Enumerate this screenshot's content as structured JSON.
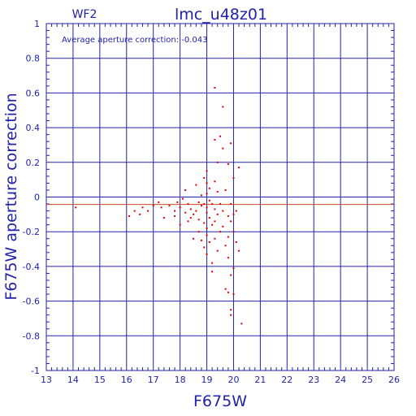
{
  "chart_data": {
    "type": "scatter",
    "panel_label": "WF2",
    "title": "lmc_u48z01",
    "annotation": "Average aperture correction: -0.043",
    "xlabel": "F675W",
    "ylabel": "F675W aperture correction",
    "xlim": [
      13,
      26
    ],
    "ylim": [
      -1,
      1
    ],
    "x_ticks": [
      "13",
      "14",
      "15",
      "16",
      "17",
      "18",
      "19",
      "20",
      "21",
      "22",
      "23",
      "24",
      "25",
      "26"
    ],
    "y_ticks": [
      "1",
      "0.8",
      "0.6",
      "0.4",
      "0.2",
      "0",
      "-0.2",
      "-0.4",
      "-0.6",
      "-0.8",
      "-1"
    ],
    "grid": true,
    "average_line": -0.043,
    "colors": {
      "axes": "#2222aa",
      "points": "#dd0000",
      "average_line": "#cc4422",
      "zero_line": "#2222aa"
    },
    "points": [
      [
        14.1,
        -0.06
      ],
      [
        16.1,
        -0.11
      ],
      [
        16.3,
        -0.08
      ],
      [
        16.5,
        -0.1
      ],
      [
        16.6,
        -0.06
      ],
      [
        16.8,
        -0.08
      ],
      [
        17.0,
        -0.05
      ],
      [
        17.2,
        -0.03
      ],
      [
        17.3,
        -0.06
      ],
      [
        17.4,
        -0.12
      ],
      [
        17.6,
        -0.05
      ],
      [
        17.8,
        -0.08
      ],
      [
        17.8,
        -0.11
      ],
      [
        17.9,
        -0.03
      ],
      [
        18.0,
        -0.06
      ],
      [
        18.0,
        -0.16
      ],
      [
        18.1,
        -0.01
      ],
      [
        18.2,
        0.04
      ],
      [
        18.2,
        -0.09
      ],
      [
        18.3,
        -0.14
      ],
      [
        18.3,
        -0.04
      ],
      [
        18.4,
        -0.07
      ],
      [
        18.4,
        -0.12
      ],
      [
        18.5,
        -0.24
      ],
      [
        18.5,
        -0.1
      ],
      [
        18.6,
        0.07
      ],
      [
        18.6,
        -0.08
      ],
      [
        18.7,
        -0.03
      ],
      [
        18.7,
        -0.13
      ],
      [
        18.7,
        -0.2
      ],
      [
        18.8,
        0.01
      ],
      [
        18.8,
        -0.05
      ],
      [
        18.8,
        -0.25
      ],
      [
        18.9,
        0.11
      ],
      [
        18.9,
        -0.04
      ],
      [
        18.9,
        -0.15
      ],
      [
        18.9,
        -0.29
      ],
      [
        19.0,
        0.15
      ],
      [
        19.0,
        0.08
      ],
      [
        19.0,
        0.02
      ],
      [
        19.0,
        -0.06
      ],
      [
        19.0,
        -0.09
      ],
      [
        19.0,
        -0.18
      ],
      [
        19.0,
        -0.22
      ],
      [
        19.0,
        -0.33
      ],
      [
        19.1,
        0.05
      ],
      [
        19.1,
        -0.02
      ],
      [
        19.1,
        -0.12
      ],
      [
        19.1,
        -0.26
      ],
      [
        19.2,
        -0.04
      ],
      [
        19.2,
        -0.16
      ],
      [
        19.2,
        -0.38
      ],
      [
        19.2,
        -0.43
      ],
      [
        19.3,
        0.63
      ],
      [
        19.3,
        0.33
      ],
      [
        19.3,
        0.09
      ],
      [
        19.3,
        -0.07
      ],
      [
        19.3,
        -0.14
      ],
      [
        19.3,
        -0.24
      ],
      [
        19.4,
        0.2
      ],
      [
        19.4,
        0.03
      ],
      [
        19.4,
        -0.1
      ],
      [
        19.4,
        -0.31
      ],
      [
        19.5,
        0.35
      ],
      [
        19.5,
        -0.04
      ],
      [
        19.5,
        -0.2
      ],
      [
        19.6,
        0.52
      ],
      [
        19.6,
        0.28
      ],
      [
        19.6,
        -0.08
      ],
      [
        19.6,
        -0.17
      ],
      [
        19.7,
        -0.53
      ],
      [
        19.7,
        0.04
      ],
      [
        19.7,
        -0.28
      ],
      [
        19.8,
        -0.55
      ],
      [
        19.8,
        0.19
      ],
      [
        19.8,
        -0.11
      ],
      [
        19.8,
        -0.23
      ],
      [
        19.8,
        -0.35
      ],
      [
        19.9,
        0.31
      ],
      [
        19.9,
        -0.04
      ],
      [
        19.9,
        -0.14
      ],
      [
        19.9,
        -0.45
      ],
      [
        19.9,
        -0.65
      ],
      [
        19.9,
        -0.68
      ],
      [
        20.0,
        -0.1
      ],
      [
        20.0,
        -0.2
      ],
      [
        20.0,
        -0.41
      ],
      [
        20.0,
        -0.56
      ],
      [
        20.0,
        0.11
      ],
      [
        20.1,
        -0.26
      ],
      [
        20.1,
        -0.08
      ],
      [
        20.2,
        0.17
      ],
      [
        20.2,
        -0.31
      ],
      [
        20.3,
        -0.73
      ]
    ]
  }
}
